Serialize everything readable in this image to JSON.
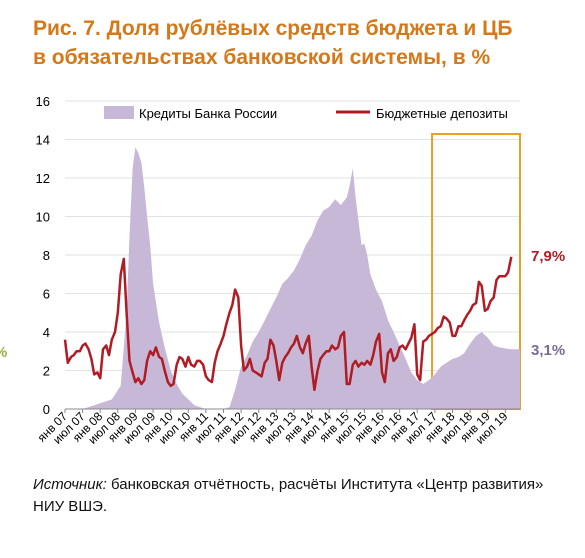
{
  "title_line1": "Рис. 7. Доля рублёвых средств бюджета и ЦБ",
  "title_line2": "в обязательствах банковской системы, в %",
  "source_label": "Источник:",
  "source_text": " банковская отчётность, расчёты Института «Центр развития» НИУ ВШЭ.",
  "left_edge_fragment": "%",
  "colors": {
    "title": "#d4781a",
    "area": "#c7b8d8",
    "line": "#b01c24",
    "highlight": "#e8a02a",
    "area_label": "#7a6a96",
    "line_label": "#b01c24"
  },
  "chart_data": {
    "type": "line",
    "ylim": [
      0,
      16
    ],
    "yticks": [
      0,
      2,
      4,
      6,
      8,
      10,
      12,
      14,
      16
    ],
    "x_range": [
      2007.0,
      2019.917
    ],
    "xticks": [
      {
        "label": "янв 07",
        "x": 2007.0
      },
      {
        "label": "июл 07",
        "x": 2007.5
      },
      {
        "label": "янв 08",
        "x": 2008.0
      },
      {
        "label": "июл 08",
        "x": 2008.5
      },
      {
        "label": "янв 09",
        "x": 2009.0
      },
      {
        "label": "июл 09",
        "x": 2009.5
      },
      {
        "label": "янв 10",
        "x": 2010.0
      },
      {
        "label": "июл 10",
        "x": 2010.5
      },
      {
        "label": "янв 11",
        "x": 2011.0
      },
      {
        "label": "июл 11",
        "x": 2011.5
      },
      {
        "label": "янв 12",
        "x": 2012.0
      },
      {
        "label": "июл 12",
        "x": 2012.5
      },
      {
        "label": "янв 13",
        "x": 2013.0
      },
      {
        "label": "июл 13",
        "x": 2013.5
      },
      {
        "label": "янв 14",
        "x": 2014.0
      },
      {
        "label": "июл 14",
        "x": 2014.5
      },
      {
        "label": "янв 15",
        "x": 2015.0
      },
      {
        "label": "июл 15",
        "x": 2015.5
      },
      {
        "label": "янв 16",
        "x": 2016.0
      },
      {
        "label": "июл 16",
        "x": 2016.5
      },
      {
        "label": "янв 17",
        "x": 2017.0
      },
      {
        "label": "июл 17",
        "x": 2017.5
      },
      {
        "label": "янв 18",
        "x": 2018.0
      },
      {
        "label": "июл 18",
        "x": 2018.5
      },
      {
        "label": "янв 19",
        "x": 2019.0
      },
      {
        "label": "июл 19",
        "x": 2019.5
      }
    ],
    "legend_position": "top",
    "highlight_range": [
      2017.42,
      2019.917
    ],
    "series": [
      {
        "name": "Кредиты Банка России",
        "type": "area",
        "end_label": "3,1%",
        "points": [
          [
            2007.0,
            0.0
          ],
          [
            2007.5,
            0.0
          ],
          [
            2007.67,
            0.1
          ],
          [
            2008.0,
            0.3
          ],
          [
            2008.33,
            0.5
          ],
          [
            2008.58,
            1.2
          ],
          [
            2008.75,
            5.0
          ],
          [
            2008.83,
            9.0
          ],
          [
            2008.92,
            12.5
          ],
          [
            2009.0,
            13.6
          ],
          [
            2009.08,
            13.3
          ],
          [
            2009.17,
            12.8
          ],
          [
            2009.25,
            11.5
          ],
          [
            2009.33,
            10.0
          ],
          [
            2009.42,
            8.5
          ],
          [
            2009.5,
            6.5
          ],
          [
            2009.67,
            4.5
          ],
          [
            2009.83,
            3.2
          ],
          [
            2010.0,
            2.0
          ],
          [
            2010.17,
            1.3
          ],
          [
            2010.33,
            0.8
          ],
          [
            2010.5,
            0.5
          ],
          [
            2010.67,
            0.2
          ],
          [
            2010.83,
            0.1
          ],
          [
            2011.0,
            0.0
          ],
          [
            2011.5,
            0.0
          ],
          [
            2011.67,
            0.1
          ],
          [
            2011.83,
            1.0
          ],
          [
            2012.0,
            2.2
          ],
          [
            2012.17,
            2.8
          ],
          [
            2012.33,
            3.5
          ],
          [
            2012.5,
            4.0
          ],
          [
            2012.67,
            4.6
          ],
          [
            2012.83,
            5.2
          ],
          [
            2013.0,
            5.8
          ],
          [
            2013.17,
            6.5
          ],
          [
            2013.33,
            6.8
          ],
          [
            2013.5,
            7.2
          ],
          [
            2013.67,
            7.8
          ],
          [
            2013.83,
            8.5
          ],
          [
            2014.0,
            9.0
          ],
          [
            2014.17,
            9.8
          ],
          [
            2014.33,
            10.3
          ],
          [
            2014.5,
            10.5
          ],
          [
            2014.67,
            10.9
          ],
          [
            2014.83,
            10.6
          ],
          [
            2015.0,
            11.0
          ],
          [
            2015.08,
            11.6
          ],
          [
            2015.17,
            12.5
          ],
          [
            2015.25,
            11.0
          ],
          [
            2015.33,
            9.8
          ],
          [
            2015.42,
            8.5
          ],
          [
            2015.5,
            8.6
          ],
          [
            2015.58,
            8.0
          ],
          [
            2015.67,
            7.0
          ],
          [
            2015.83,
            6.2
          ],
          [
            2016.0,
            5.6
          ],
          [
            2016.17,
            4.6
          ],
          [
            2016.33,
            4.0
          ],
          [
            2016.5,
            3.3
          ],
          [
            2016.67,
            2.6
          ],
          [
            2016.83,
            1.9
          ],
          [
            2017.0,
            1.5
          ],
          [
            2017.17,
            1.3
          ],
          [
            2017.33,
            1.5
          ],
          [
            2017.5,
            1.8
          ],
          [
            2017.67,
            2.2
          ],
          [
            2017.83,
            2.4
          ],
          [
            2018.0,
            2.6
          ],
          [
            2018.17,
            2.7
          ],
          [
            2018.33,
            2.9
          ],
          [
            2018.5,
            3.4
          ],
          [
            2018.67,
            3.8
          ],
          [
            2018.83,
            4.0
          ],
          [
            2019.0,
            3.7
          ],
          [
            2019.17,
            3.3
          ],
          [
            2019.33,
            3.2
          ],
          [
            2019.5,
            3.15
          ],
          [
            2019.67,
            3.1
          ],
          [
            2019.917,
            3.1
          ]
        ]
      },
      {
        "name": "Бюджетные депозиты",
        "type": "line",
        "end_label": "7,9%",
        "points": [
          [
            2007.0,
            3.6
          ],
          [
            2007.08,
            2.4
          ],
          [
            2007.17,
            2.7
          ],
          [
            2007.25,
            2.8
          ],
          [
            2007.33,
            3.0
          ],
          [
            2007.42,
            3.0
          ],
          [
            2007.5,
            3.3
          ],
          [
            2007.58,
            3.4
          ],
          [
            2007.67,
            3.1
          ],
          [
            2007.75,
            2.6
          ],
          [
            2007.83,
            1.8
          ],
          [
            2007.92,
            1.9
          ],
          [
            2008.0,
            1.6
          ],
          [
            2008.08,
            3.1
          ],
          [
            2008.17,
            3.3
          ],
          [
            2008.25,
            2.8
          ],
          [
            2008.33,
            3.6
          ],
          [
            2008.42,
            4.0
          ],
          [
            2008.5,
            5.0
          ],
          [
            2008.58,
            7.0
          ],
          [
            2008.67,
            7.8
          ],
          [
            2008.75,
            5.0
          ],
          [
            2008.83,
            2.5
          ],
          [
            2008.92,
            1.9
          ],
          [
            2009.0,
            1.4
          ],
          [
            2009.08,
            1.6
          ],
          [
            2009.17,
            1.3
          ],
          [
            2009.25,
            1.5
          ],
          [
            2009.33,
            2.5
          ],
          [
            2009.42,
            3.0
          ],
          [
            2009.5,
            2.8
          ],
          [
            2009.58,
            3.2
          ],
          [
            2009.67,
            2.7
          ],
          [
            2009.75,
            2.6
          ],
          [
            2009.83,
            2.0
          ],
          [
            2009.92,
            1.4
          ],
          [
            2010.0,
            1.2
          ],
          [
            2010.08,
            1.3
          ],
          [
            2010.17,
            2.3
          ],
          [
            2010.25,
            2.7
          ],
          [
            2010.33,
            2.6
          ],
          [
            2010.42,
            2.2
          ],
          [
            2010.5,
            2.7
          ],
          [
            2010.58,
            2.3
          ],
          [
            2010.67,
            2.2
          ],
          [
            2010.75,
            2.5
          ],
          [
            2010.83,
            2.5
          ],
          [
            2010.92,
            2.3
          ],
          [
            2011.0,
            1.7
          ],
          [
            2011.08,
            1.5
          ],
          [
            2011.17,
            1.4
          ],
          [
            2011.25,
            2.4
          ],
          [
            2011.33,
            3.0
          ],
          [
            2011.42,
            3.4
          ],
          [
            2011.5,
            3.8
          ],
          [
            2011.58,
            4.4
          ],
          [
            2011.67,
            5.0
          ],
          [
            2011.75,
            5.4
          ],
          [
            2011.83,
            6.2
          ],
          [
            2011.92,
            5.8
          ],
          [
            2012.0,
            3.3
          ],
          [
            2012.08,
            2.0
          ],
          [
            2012.17,
            2.2
          ],
          [
            2012.25,
            2.6
          ],
          [
            2012.33,
            2.0
          ],
          [
            2012.42,
            1.9
          ],
          [
            2012.5,
            1.8
          ],
          [
            2012.58,
            1.7
          ],
          [
            2012.67,
            2.4
          ],
          [
            2012.75,
            2.6
          ],
          [
            2012.83,
            3.6
          ],
          [
            2012.92,
            3.3
          ],
          [
            2013.0,
            2.5
          ],
          [
            2013.08,
            1.5
          ],
          [
            2013.17,
            2.4
          ],
          [
            2013.25,
            2.7
          ],
          [
            2013.33,
            2.9
          ],
          [
            2013.42,
            3.2
          ],
          [
            2013.5,
            3.4
          ],
          [
            2013.58,
            3.8
          ],
          [
            2013.67,
            3.2
          ],
          [
            2013.75,
            2.9
          ],
          [
            2013.83,
            3.4
          ],
          [
            2013.92,
            3.8
          ],
          [
            2014.0,
            2.2
          ],
          [
            2014.08,
            1.0
          ],
          [
            2014.17,
            2.0
          ],
          [
            2014.25,
            2.6
          ],
          [
            2014.33,
            2.8
          ],
          [
            2014.42,
            3.0
          ],
          [
            2014.5,
            3.0
          ],
          [
            2014.58,
            3.3
          ],
          [
            2014.67,
            3.1
          ],
          [
            2014.75,
            3.2
          ],
          [
            2014.83,
            3.8
          ],
          [
            2014.92,
            4.0
          ],
          [
            2015.0,
            1.3
          ],
          [
            2015.08,
            1.3
          ],
          [
            2015.17,
            2.3
          ],
          [
            2015.25,
            2.5
          ],
          [
            2015.33,
            2.2
          ],
          [
            2015.42,
            2.4
          ],
          [
            2015.5,
            2.3
          ],
          [
            2015.58,
            2.5
          ],
          [
            2015.67,
            2.3
          ],
          [
            2015.75,
            2.8
          ],
          [
            2015.83,
            3.5
          ],
          [
            2015.92,
            3.9
          ],
          [
            2016.0,
            1.9
          ],
          [
            2016.08,
            1.4
          ],
          [
            2016.17,
            2.9
          ],
          [
            2016.25,
            3.1
          ],
          [
            2016.33,
            2.5
          ],
          [
            2016.42,
            2.7
          ],
          [
            2016.5,
            3.2
          ],
          [
            2016.58,
            3.3
          ],
          [
            2016.67,
            3.1
          ],
          [
            2016.75,
            3.4
          ],
          [
            2016.83,
            3.7
          ],
          [
            2016.92,
            4.4
          ],
          [
            2017.0,
            1.8
          ],
          [
            2017.08,
            1.5
          ],
          [
            2017.17,
            3.5
          ],
          [
            2017.25,
            3.6
          ],
          [
            2017.33,
            3.8
          ],
          [
            2017.42,
            3.9
          ],
          [
            2017.5,
            4.0
          ],
          [
            2017.58,
            4.2
          ],
          [
            2017.67,
            4.3
          ],
          [
            2017.75,
            4.8
          ],
          [
            2017.83,
            4.7
          ],
          [
            2017.92,
            4.5
          ],
          [
            2018.0,
            3.8
          ],
          [
            2018.08,
            3.8
          ],
          [
            2018.17,
            4.3
          ],
          [
            2018.25,
            4.3
          ],
          [
            2018.33,
            4.6
          ],
          [
            2018.42,
            4.9
          ],
          [
            2018.5,
            5.1
          ],
          [
            2018.58,
            5.4
          ],
          [
            2018.67,
            5.5
          ],
          [
            2018.75,
            6.6
          ],
          [
            2018.83,
            6.4
          ],
          [
            2018.92,
            5.1
          ],
          [
            2019.0,
            5.2
          ],
          [
            2019.08,
            5.6
          ],
          [
            2019.17,
            5.8
          ],
          [
            2019.25,
            6.7
          ],
          [
            2019.33,
            6.9
          ],
          [
            2019.42,
            6.9
          ],
          [
            2019.5,
            6.9
          ],
          [
            2019.58,
            7.1
          ],
          [
            2019.67,
            7.9
          ]
        ]
      }
    ]
  }
}
